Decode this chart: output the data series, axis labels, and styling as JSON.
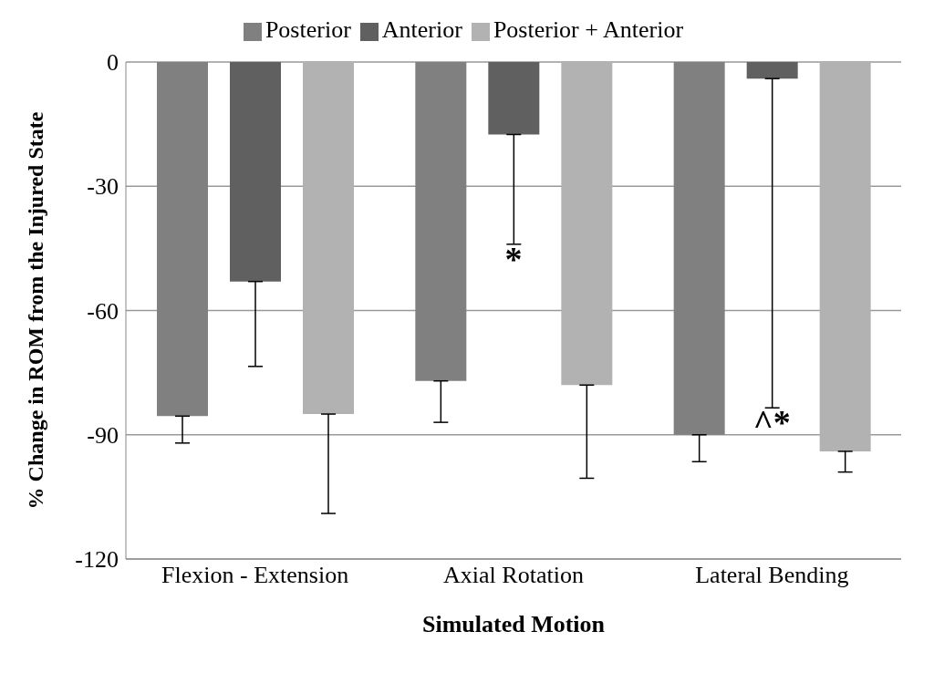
{
  "chart_data": {
    "type": "bar",
    "xlabel": "Simulated Motion",
    "ylabel": "% Change in ROM from the Injured State",
    "categories": [
      "Flexion - Extension",
      "Axial Rotation",
      "Lateral Bending"
    ],
    "series": [
      {
        "name": "Posterior",
        "color": "#808080",
        "values": [
          -85.5,
          -77,
          -90
        ],
        "errors": [
          [
            -92,
            -85.5
          ],
          [
            -87,
            -77
          ],
          [
            -96.5,
            -90
          ]
        ]
      },
      {
        "name": "Anterior",
        "color": "#606060",
        "values": [
          -53,
          -17.5,
          -4
        ],
        "errors": [
          [
            -73.5,
            -53
          ],
          [
            -44,
            -17.5
          ],
          [
            -83.5,
            -4
          ]
        ]
      },
      {
        "name": "Posterior + Anterior",
        "color": "#b2b2b2",
        "values": [
          -85,
          -78,
          -94
        ],
        "errors": [
          [
            -109,
            -85
          ],
          [
            -100.5,
            -78
          ],
          [
            -99,
            -94
          ]
        ]
      }
    ],
    "annotations": [
      {
        "text": "*",
        "x": "Axial Rotation",
        "y": -44
      },
      {
        "text": "^*",
        "x": "Lateral Bending",
        "y": -83.5
      }
    ],
    "ylim": [
      -120,
      0
    ],
    "yticks": [
      -120,
      -90,
      -60,
      -30,
      0
    ],
    "grid": "y",
    "legend": "top"
  }
}
